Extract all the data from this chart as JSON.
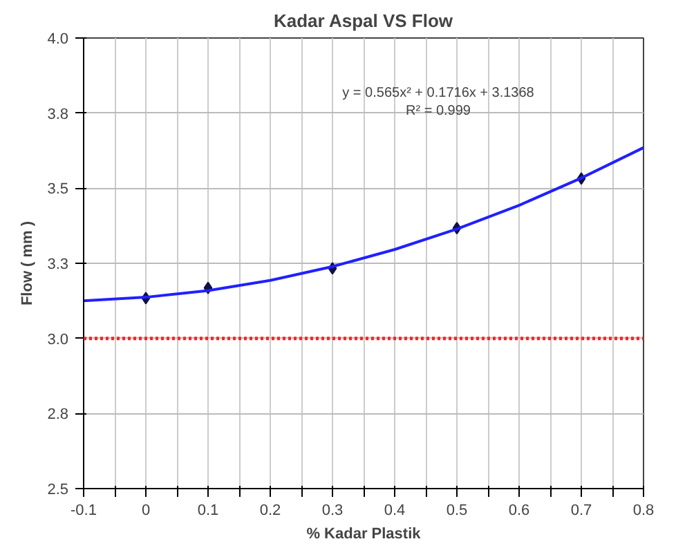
{
  "chart_data": {
    "type": "scatter",
    "title": "Kadar Aspal VS Flow",
    "xlabel": "% Kadar Plastik",
    "ylabel": "Flow ( mm )",
    "x": [
      0,
      0.1,
      0.3,
      0.5,
      0.7
    ],
    "series": [
      {
        "color": "#10104a",
        "marker": "diamond",
        "values": [
          3.134,
          3.168,
          3.233,
          3.367,
          3.532
        ]
      },
      {
        "type": "line",
        "color": "#2020ff",
        "marker": "none",
        "line_style": "solid",
        "x": [
          -0.1,
          0,
          0.1,
          0.2,
          0.3,
          0.4,
          0.5,
          0.6,
          0.7,
          0.8
        ],
        "values": [
          3.125,
          3.137,
          3.159,
          3.193,
          3.239,
          3.296,
          3.364,
          3.443,
          3.534,
          3.635
        ]
      }
    ],
    "xlim": [
      -0.1,
      0.8
    ],
    "xticks": [
      -0.1,
      {
        "value": -0.05,
        "label": null
      },
      0,
      {
        "value": 0.05,
        "label": null
      },
      0.1,
      {
        "value": 0.15,
        "label": null
      },
      0.2,
      {
        "value": 0.25,
        "label": null
      },
      0.3,
      {
        "value": 0.35,
        "label": null
      },
      0.4,
      {
        "value": 0.45,
        "label": null
      },
      0.5,
      {
        "value": 0.55,
        "label": null
      },
      0.6,
      {
        "value": 0.65,
        "label": null
      },
      0.7,
      {
        "value": 0.75,
        "label": null
      },
      0.8
    ],
    "ylim": [
      2.5,
      4.0
    ],
    "yticks": [
      2.5,
      {
        "value": 2.75,
        "label": "2.8"
      },
      {
        "value": 3,
        "label": "3.0"
      },
      {
        "value": 3.25,
        "label": "3.3"
      },
      3.5,
      {
        "value": 3.75,
        "label": "3.8"
      },
      {
        "value": 4,
        "label": "4.0"
      }
    ],
    "ref_lines": [
      {
        "axis": "y",
        "value": 3.0,
        "color": "#ff2020",
        "line_style": "dotted"
      }
    ],
    "annotations": [
      "y = 0.565x² + 0.1716x + 3.1368",
      "R² = 0.999"
    ],
    "grid": true
  }
}
